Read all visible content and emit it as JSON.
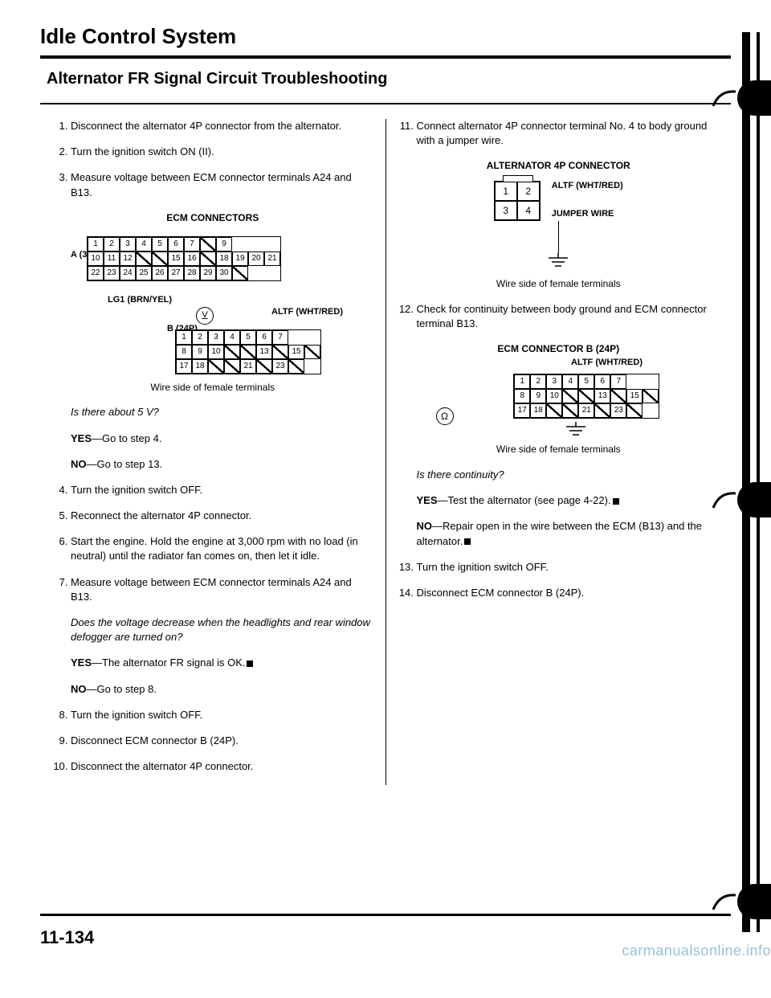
{
  "page": {
    "main_title": "Idle Control System",
    "section_title": "Alternator FR Signal Circuit Troubleshooting",
    "page_number": "11-134",
    "watermark": "carmanualsonline.info"
  },
  "left": {
    "s1": "Disconnect the alternator 4P connector from the alternator.",
    "s2": "Turn the ignition switch ON (II).",
    "s3": "Measure voltage between ECM connector terminals A24 and B13.",
    "fig1_title": "ECM CONNECTORS",
    "fig1_a": "A (31P)",
    "fig1_lg1": "LG1 (BRN/YEL)",
    "fig1_altf": "ALTF (WHT/RED)",
    "fig1_b": "B (24P)",
    "fig1_caption": "Wire side of female terminals",
    "q1": "Is there about 5 V?",
    "yes1": "—Go to step 4.",
    "no1": "—Go to step 13.",
    "s4": "Turn the ignition switch OFF.",
    "s5": "Reconnect the alternator 4P connector.",
    "s6": "Start the engine. Hold the engine at 3,000 rpm with no load (in neutral) until the radiator fan comes on, then let it idle.",
    "s7": "Measure voltage between ECM connector terminals A24 and B13.",
    "q2": "Does the voltage decrease when the headlights and rear window defogger are turned on?",
    "yes2": "—The alternator FR signal is OK.",
    "no2": "—Go to step 8.",
    "s8": "Turn the ignition switch OFF.",
    "s9": "Disconnect ECM connector B (24P).",
    "s10": "Disconnect the alternator 4P connector."
  },
  "right": {
    "s11": "Connect alternator 4P connector terminal No. 4 to body ground with a jumper wire.",
    "fig2_title": "ALTERNATOR 4P CONNECTOR",
    "fig2_altf": "ALTF (WHT/RED)",
    "fig2_jumper": "JUMPER WIRE",
    "fig2_caption": "Wire side of female terminals",
    "s12": "Check for continuity between body ground and ECM connector terminal B13.",
    "fig3_title": "ECM CONNECTOR B (24P)",
    "fig3_altf": "ALTF (WHT/RED)",
    "fig3_caption": "Wire side of female terminals",
    "q3": "Is there continuity?",
    "yes3": "—Test the alternator (see page 4-22).",
    "no3": "—Repair open in the wire between the ECM (B13) and the alternator.",
    "s13": "Turn the ignition switch OFF.",
    "s14": "Disconnect ECM connector B (24P)."
  },
  "conn": {
    "a31p": {
      "r1": [
        {
          "n": "1"
        },
        {
          "n": "2"
        },
        {
          "n": "3"
        },
        {
          "n": "4"
        },
        {
          "n": "5"
        },
        {
          "n": "6"
        },
        {
          "n": "7"
        },
        {
          "n": "",
          "s": true
        },
        {
          "n": "9"
        }
      ],
      "r2": [
        {
          "n": "10"
        },
        {
          "n": "11"
        },
        {
          "n": "12"
        },
        {
          "n": "",
          "s": true
        },
        {
          "n": "",
          "s": true
        },
        {
          "n": "15"
        },
        {
          "n": "16"
        },
        {
          "n": "",
          "s": true
        },
        {
          "n": "18"
        },
        {
          "n": "19"
        },
        {
          "n": "20"
        },
        {
          "n": "21"
        }
      ],
      "r3": [
        {
          "n": "22"
        },
        {
          "n": "23"
        },
        {
          "n": "24"
        },
        {
          "n": "25"
        },
        {
          "n": "26"
        },
        {
          "n": "27"
        },
        {
          "n": "28"
        },
        {
          "n": "29"
        },
        {
          "n": "30"
        },
        {
          "n": "",
          "s": true
        }
      ]
    },
    "b24p": {
      "r1": [
        {
          "n": "1"
        },
        {
          "n": "2"
        },
        {
          "n": "3"
        },
        {
          "n": "4"
        },
        {
          "n": "5"
        },
        {
          "n": "6"
        },
        {
          "n": "7"
        }
      ],
      "r2": [
        {
          "n": "8"
        },
        {
          "n": "9"
        },
        {
          "n": "10"
        },
        {
          "n": "",
          "s": true
        },
        {
          "n": "",
          "s": true
        },
        {
          "n": "13"
        },
        {
          "n": "",
          "s": true
        },
        {
          "n": "15"
        },
        {
          "n": "",
          "s": true
        }
      ],
      "r3": [
        {
          "n": "17"
        },
        {
          "n": "18"
        },
        {
          "n": "",
          "s": true
        },
        {
          "n": "",
          "s": true
        },
        {
          "n": "21"
        },
        {
          "n": "",
          "s": true
        },
        {
          "n": "23"
        },
        {
          "n": "",
          "s": true
        }
      ]
    },
    "p4": [
      [
        "1",
        "2"
      ],
      [
        "3",
        "4"
      ]
    ]
  }
}
